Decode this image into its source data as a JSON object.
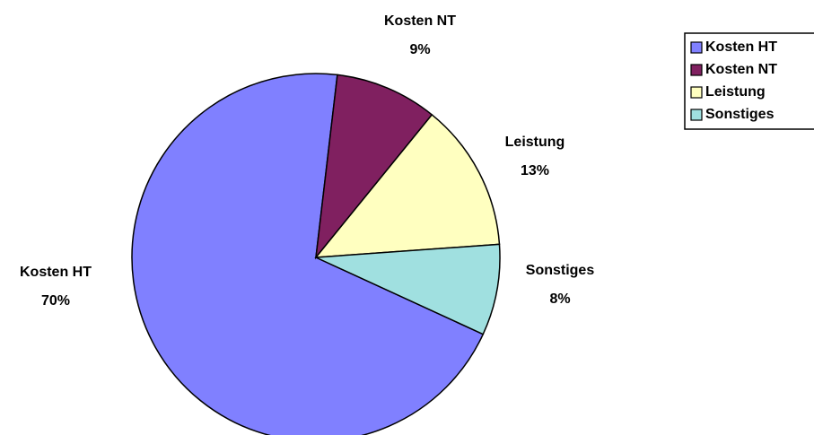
{
  "chart_data": {
    "type": "pie",
    "categories": [
      "Kosten HT",
      "Kosten NT",
      "Leistung",
      "Sonstiges"
    ],
    "values": [
      70,
      9,
      13,
      8
    ],
    "value_labels": [
      "70%",
      "9%",
      "13%",
      "8%"
    ],
    "colors": [
      "#8080ff",
      "#802060",
      "#ffffc0",
      "#a0e0e0"
    ],
    "legend": "top-right"
  }
}
